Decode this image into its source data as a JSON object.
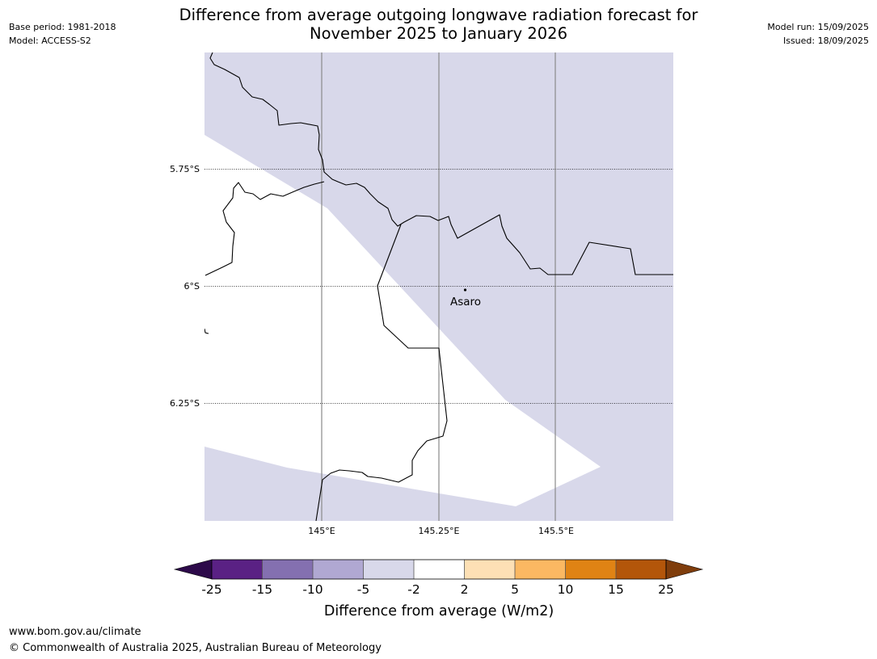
{
  "header": {
    "base_period": "Base period: 1981-2018",
    "model": "Model: ACCESS-S2",
    "title_line1": "Difference from average outgoing longwave radiation forecast for",
    "title_line2": "November 2025 to January 2026",
    "model_run": "Model run: 15/09/2025",
    "issued": "Issued: 18/09/2025"
  },
  "map": {
    "latitude_labels": [
      "5.75°S",
      "6°S",
      "6.25°S"
    ],
    "longitude_labels": [
      "145°E",
      "145.25°E",
      "145.5°E"
    ],
    "place": {
      "name": "Asaro"
    },
    "fill_colors": {
      "minus5_to_minus2": "#d8d8ea",
      "minus2_to_2": "#ffffff"
    }
  },
  "colorbar": {
    "label": "Difference from average (W/m2)",
    "ticks": [
      "-25",
      "-15",
      "-10",
      "-5",
      "-2",
      "2",
      "5",
      "10",
      "15",
      "25"
    ],
    "colors": [
      "#5a2184",
      "#8470b0",
      "#b0a8d2",
      "#d8d8ea",
      "#ffffff",
      "#fde0b5",
      "#fbb862",
      "#e08314",
      "#b3560a"
    ],
    "under_color": "#2d0a4a",
    "over_color": "#7f3d0c"
  },
  "footer": {
    "url": "www.bom.gov.au/climate",
    "copyright": "© Commonwealth of Australia 2025, Australian Bureau of Meteorology"
  }
}
